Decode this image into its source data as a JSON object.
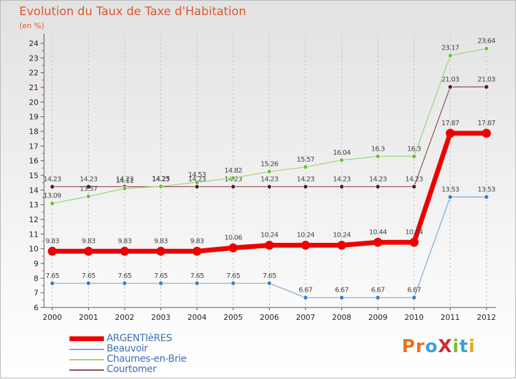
{
  "title": "Evolution du Taux de Taxe d'Habitation",
  "unit": "(en %)",
  "brand": {
    "text": "ProXiti",
    "letter_colors": [
      "#e8731c",
      "#e8731c",
      "#3aa0d8",
      "#c9302c",
      "#7fb93a",
      "#3aa0d8",
      "#e8a51c"
    ]
  },
  "chart_data": {
    "type": "line",
    "title": "Evolution du Taux de Taxe d'Habitation",
    "ylabel": "(en %)",
    "xlabel": "",
    "categories": [
      "2000",
      "2001",
      "2002",
      "2003",
      "2004",
      "2005",
      "2006",
      "2007",
      "2008",
      "2009",
      "2010",
      "2011",
      "2012"
    ],
    "ylim": [
      6,
      24
    ],
    "yticks": [
      "6",
      "7",
      "8",
      "9",
      "10",
      "11",
      "12",
      "13",
      "14",
      "15",
      "16",
      "17",
      "18",
      "19",
      "20",
      "21",
      "22",
      "23",
      "24"
    ],
    "grid": "vertical dashed",
    "legend_position": "bottom-left",
    "series": [
      {
        "name": "Courtomer",
        "color": "#8b4a50",
        "marker": "#5a1a1e",
        "width": 1.2,
        "values": [
          14.23,
          14.23,
          14.23,
          14.23,
          14.23,
          14.23,
          14.23,
          14.23,
          14.23,
          14.23,
          14.23,
          21.03,
          21.03
        ],
        "labels": [
          "14.23",
          "14.23",
          "14.23",
          "14.23",
          "14.23",
          "14.23",
          "14.23",
          "14.23",
          "14.23",
          "14.23",
          "14.23",
          "21.03",
          "21.03"
        ]
      },
      {
        "name": "Chaumes-en-Brie",
        "color": "#9ad472",
        "marker": "#6cbf3a",
        "width": 1.2,
        "values": [
          13.09,
          13.57,
          14.11,
          14.25,
          14.53,
          14.82,
          15.26,
          15.57,
          16.04,
          16.3,
          16.3,
          23.17,
          23.64
        ],
        "labels": [
          "13.09",
          "13.57",
          "14.11",
          "14.25",
          "14.53",
          "14.82",
          "15.26",
          "15.57",
          "16.04",
          "16.3",
          "16.3",
          "23.17",
          "23.64"
        ]
      },
      {
        "name": "Beauvoir",
        "color": "#7aa8d2",
        "marker": "#3a80c0",
        "width": 1.2,
        "values": [
          7.65,
          7.65,
          7.65,
          7.65,
          7.65,
          7.65,
          7.65,
          6.67,
          6.67,
          6.67,
          6.67,
          13.53,
          13.53
        ],
        "labels": [
          "7.65",
          "7.65",
          "7.65",
          "7.65",
          "7.65",
          "7.65",
          "7.65",
          "6.67",
          "6.67",
          "6.67",
          "6.67",
          "13.53",
          "13.53"
        ]
      },
      {
        "name": "ARGENTIèRES",
        "color": "#ee0000",
        "marker": "#ee0000",
        "width": 7,
        "values": [
          9.83,
          9.83,
          9.83,
          9.83,
          9.83,
          10.06,
          10.24,
          10.24,
          10.24,
          10.44,
          10.44,
          17.87,
          17.87
        ],
        "labels": [
          "9.83",
          "9.83",
          "9.83",
          "9.83",
          "9.83",
          "10.06",
          "10.24",
          "10.24",
          "10.24",
          "10.44",
          "10.44",
          "17.87",
          "17.87"
        ]
      }
    ]
  },
  "legend": {
    "items": [
      "ARGENTIèRES",
      "Beauvoir",
      "Chaumes-en-Brie",
      "Courtomer"
    ]
  }
}
